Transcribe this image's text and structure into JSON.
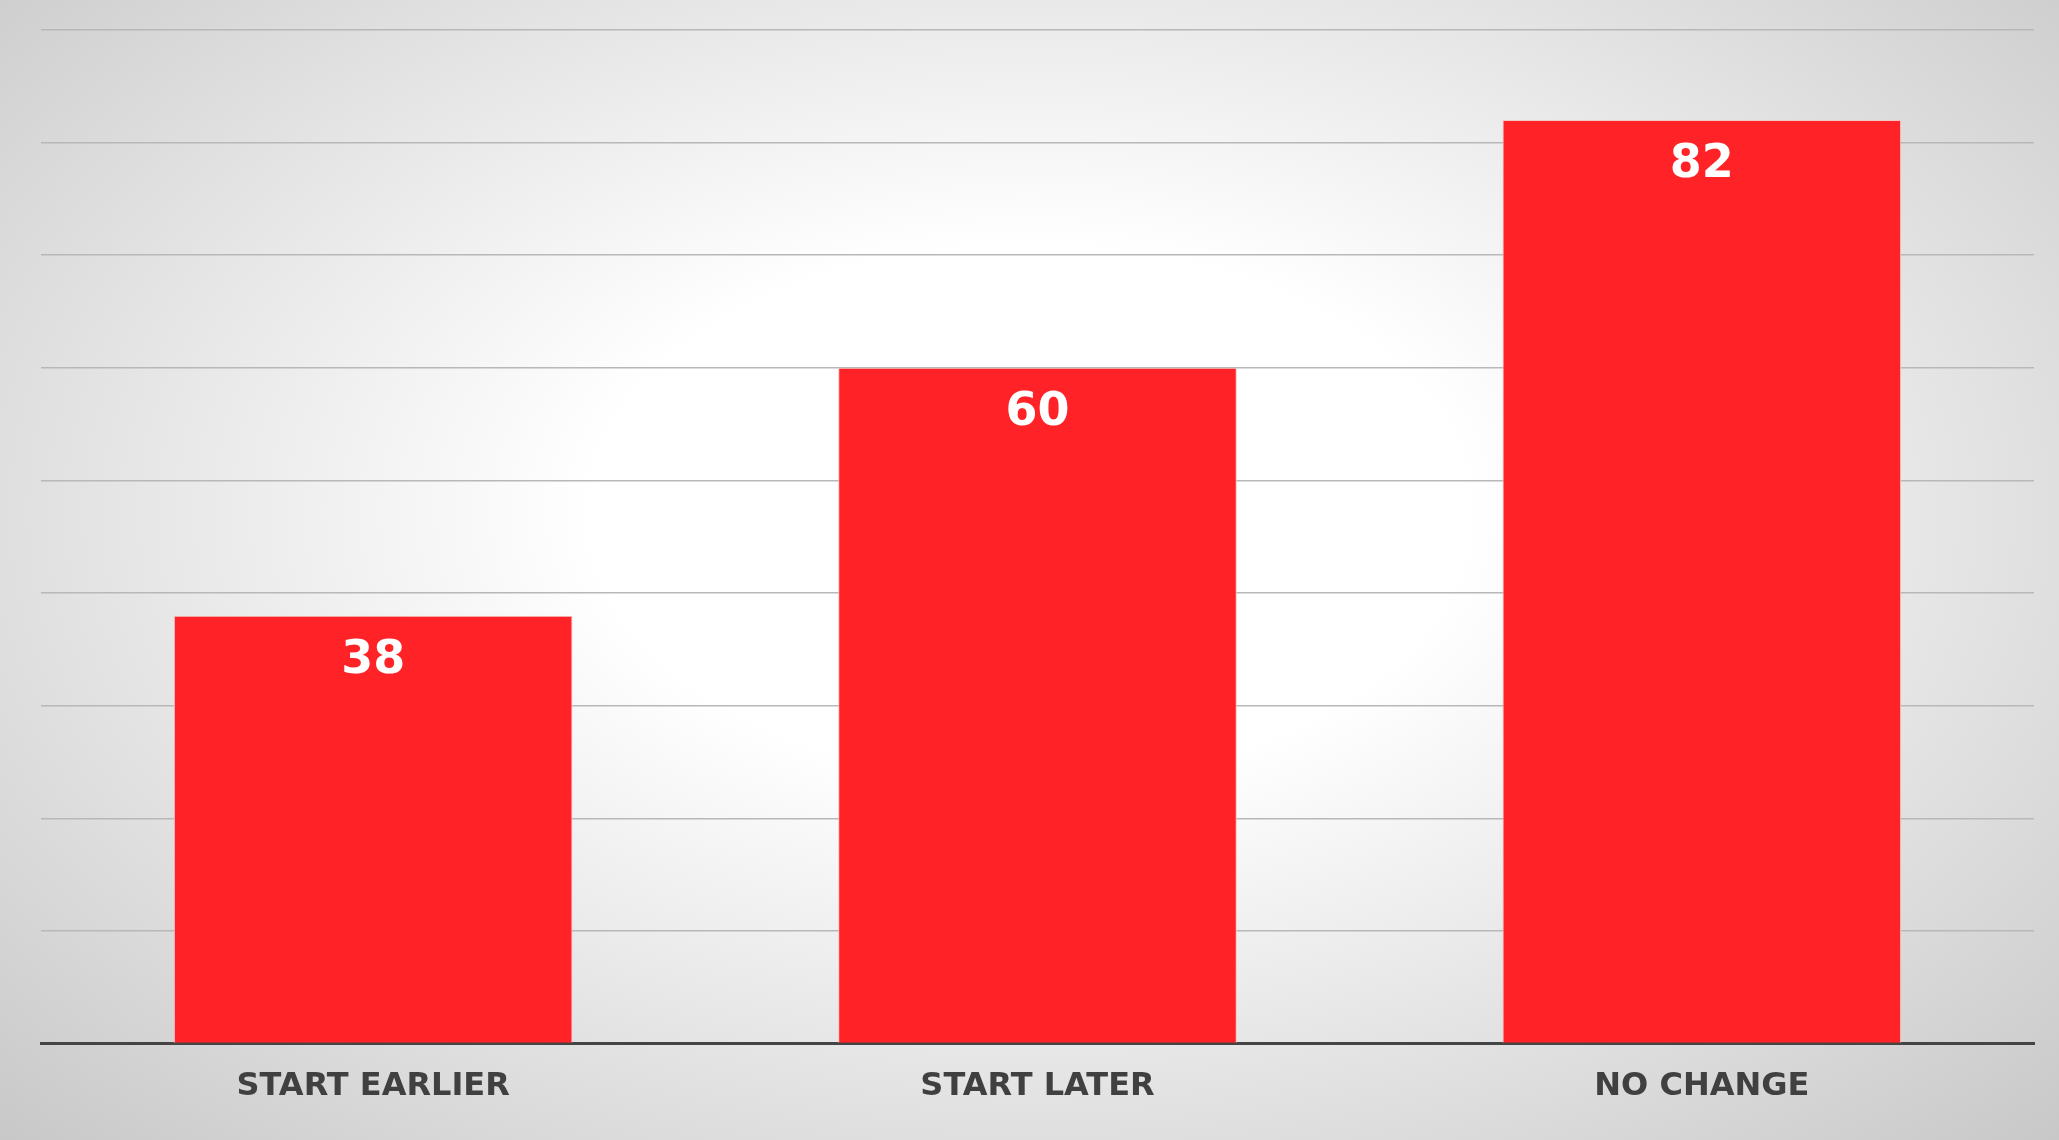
{
  "chart_data": {
    "type": "bar",
    "categories": [
      "START EARLIER",
      "START LATER",
      "NO CHANGE"
    ],
    "values": [
      38,
      60,
      82
    ],
    "color": "#ff2226",
    "ylim": [
      0,
      90
    ],
    "yticks": [
      {
        "value": 0,
        "label": null
      },
      {
        "value": 10,
        "label": null
      },
      {
        "value": 20,
        "label": null
      },
      {
        "value": 30,
        "label": null
      },
      {
        "value": 40,
        "label": null
      },
      {
        "value": 50,
        "label": null
      },
      {
        "value": 60,
        "label": null
      },
      {
        "value": 70,
        "label": null
      },
      {
        "value": 80,
        "label": null
      },
      {
        "value": 90,
        "label": null
      }
    ],
    "grid": "y",
    "data_labels": true,
    "tick_labels": "x",
    "legend": false
  }
}
